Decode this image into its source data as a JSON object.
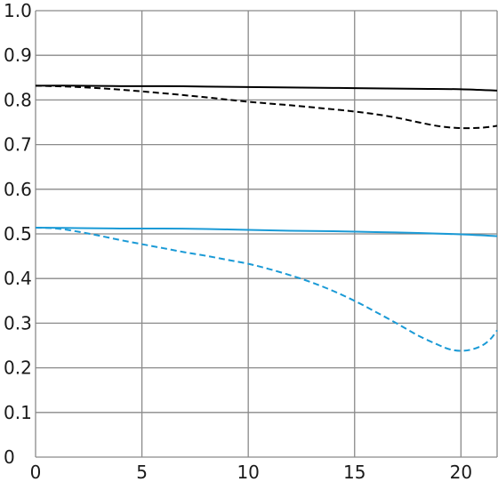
{
  "chart_data": {
    "type": "line",
    "title": "",
    "xlabel": "",
    "ylabel": "",
    "xlim": [
      0,
      21.7
    ],
    "ylim": [
      0,
      1.0
    ],
    "x_ticks": [
      "0",
      "5",
      "10",
      "15",
      "20"
    ],
    "y_ticks": [
      "0",
      "0.1",
      "0.2",
      "0.3",
      "0.4",
      "0.5",
      "0.6",
      "0.7",
      "0.8",
      "0.9",
      "1.0"
    ],
    "grid": true,
    "legend": "none",
    "series": [
      {
        "color": "#000000",
        "style": "solid",
        "x": [
          0,
          2,
          4,
          6,
          8,
          10,
          12,
          14,
          16,
          18,
          20,
          21.7
        ],
        "y": [
          0.832,
          0.832,
          0.831,
          0.831,
          0.83,
          0.829,
          0.828,
          0.827,
          0.826,
          0.825,
          0.824,
          0.821
        ]
      },
      {
        "color": "#000000",
        "style": "dashed",
        "x": [
          0,
          2,
          4,
          6,
          8,
          10,
          12,
          14,
          15,
          16,
          17,
          18,
          19,
          20,
          21,
          21.7
        ],
        "y": [
          0.832,
          0.829,
          0.823,
          0.815,
          0.806,
          0.796,
          0.788,
          0.779,
          0.774,
          0.768,
          0.76,
          0.75,
          0.741,
          0.737,
          0.738,
          0.742
        ]
      },
      {
        "color": "#1a9ad6",
        "style": "solid",
        "x": [
          0,
          2,
          4,
          6,
          8,
          10,
          12,
          14,
          16,
          18,
          20,
          21.7
        ],
        "y": [
          0.514,
          0.513,
          0.512,
          0.512,
          0.511,
          0.509,
          0.507,
          0.506,
          0.504,
          0.502,
          0.499,
          0.495
        ]
      },
      {
        "color": "#1a9ad6",
        "style": "dashed",
        "x": [
          0,
          1,
          2,
          3,
          4,
          5,
          6,
          7,
          8,
          9,
          10,
          11,
          12,
          13,
          14,
          15,
          16,
          17,
          18,
          19,
          19.5,
          20,
          20.5,
          21,
          21.4,
          21.7
        ],
        "y": [
          0.514,
          0.512,
          0.505,
          0.496,
          0.486,
          0.477,
          0.468,
          0.459,
          0.451,
          0.442,
          0.433,
          0.421,
          0.407,
          0.391,
          0.372,
          0.35,
          0.325,
          0.299,
          0.272,
          0.25,
          0.241,
          0.238,
          0.241,
          0.25,
          0.265,
          0.284
        ]
      }
    ]
  }
}
